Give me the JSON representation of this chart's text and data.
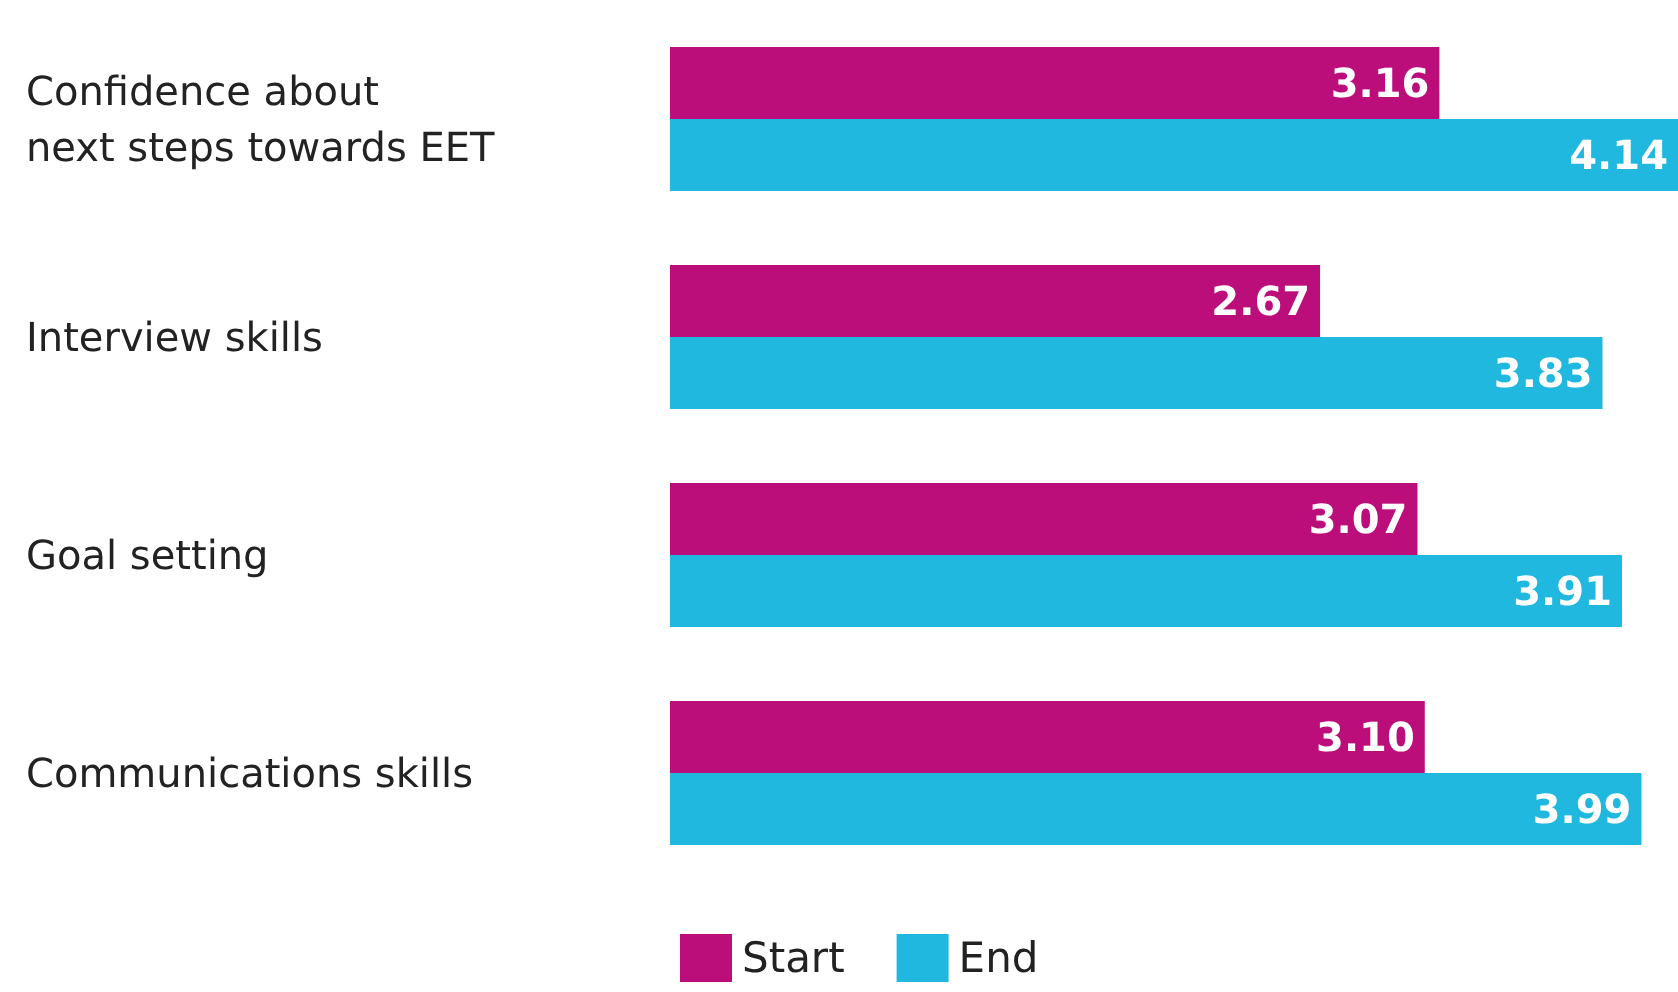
{
  "chart_data": {
    "type": "bar",
    "orientation": "horizontal",
    "data_labels": true,
    "legend": "bottom",
    "categories": [
      "Confidence about\nnext steps towards EET",
      "Interview skills",
      "Goal setting",
      "Communications skills"
    ],
    "series": [
      {
        "name": "Start",
        "color": "#bc0e7a",
        "values": [
          3.16,
          2.67,
          3.07,
          3.1
        ],
        "value_labels": [
          "3.16",
          "2.67",
          "3.07",
          "3.10"
        ]
      },
      {
        "name": "End",
        "color": "#21b8e0",
        "values": [
          4.14,
          3.83,
          3.91,
          3.99
        ],
        "value_labels": [
          "4.14",
          "3.83",
          "3.91",
          "3.99"
        ]
      }
    ]
  }
}
